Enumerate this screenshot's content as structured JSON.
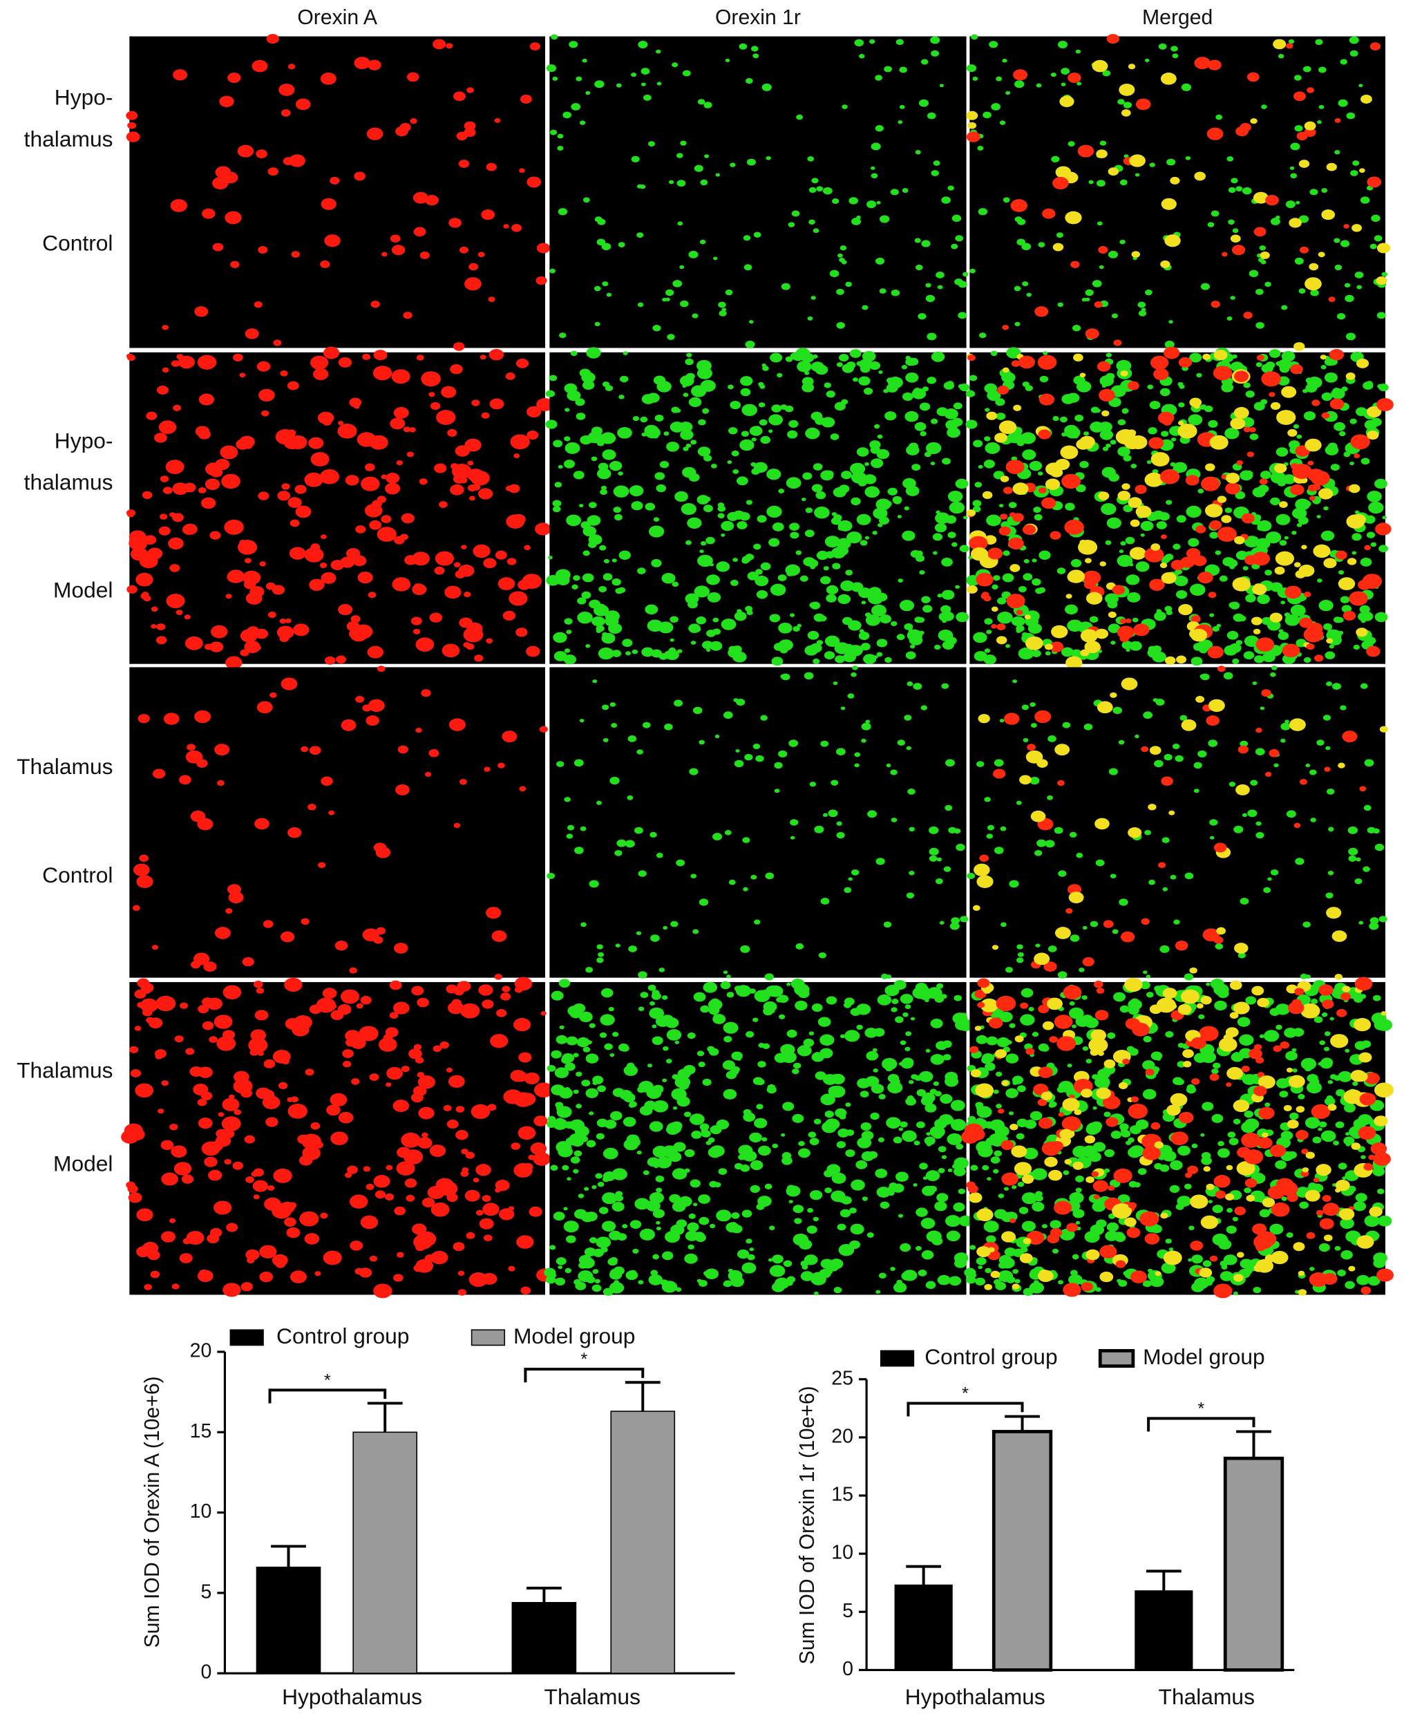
{
  "microscopy": {
    "column_labels": [
      "Orexin A",
      "Orexin 1r",
      "Merged"
    ],
    "row_labels": [
      [
        "Hypo-",
        "thalamus",
        "Control"
      ],
      [
        "Hypo-",
        "thalamus",
        "Model"
      ],
      [
        "Thalamus",
        "Control"
      ],
      [
        "Thalamus",
        "Model"
      ]
    ]
  },
  "chart_data": [
    {
      "type": "bar",
      "y_label": "Sum IOD of Orexin A (10e+6)",
      "categories": [
        "Hypothalamus",
        "Thalamus"
      ],
      "series": [
        {
          "name": "Control group",
          "color": "#000000",
          "values": [
            6.6,
            4.4
          ],
          "errors": [
            1.3,
            0.9
          ]
        },
        {
          "name": "Model group",
          "color": "#9a9a9a",
          "values": [
            15.0,
            16.3
          ],
          "errors": [
            1.8,
            1.8
          ]
        }
      ],
      "ylim": [
        0,
        20
      ],
      "yticks": [
        0,
        5,
        10,
        15,
        20
      ],
      "annotations": [
        "*",
        "*"
      ]
    },
    {
      "type": "bar",
      "y_label": "Sum IOD of Orexin 1r (10e+6)",
      "categories": [
        "Hypothalamus",
        "Thalamus"
      ],
      "series": [
        {
          "name": "Control group",
          "color": "#000000",
          "values": [
            7.3,
            6.8
          ],
          "errors": [
            1.6,
            1.7
          ]
        },
        {
          "name": "Model group",
          "color": "#9a9a9a",
          "values": [
            20.5,
            18.2
          ],
          "errors": [
            1.3,
            2.3
          ]
        }
      ],
      "ylim": [
        0,
        25
      ],
      "yticks": [
        0,
        5,
        10,
        15,
        20,
        25
      ],
      "annotations": [
        "*",
        "*"
      ]
    }
  ]
}
